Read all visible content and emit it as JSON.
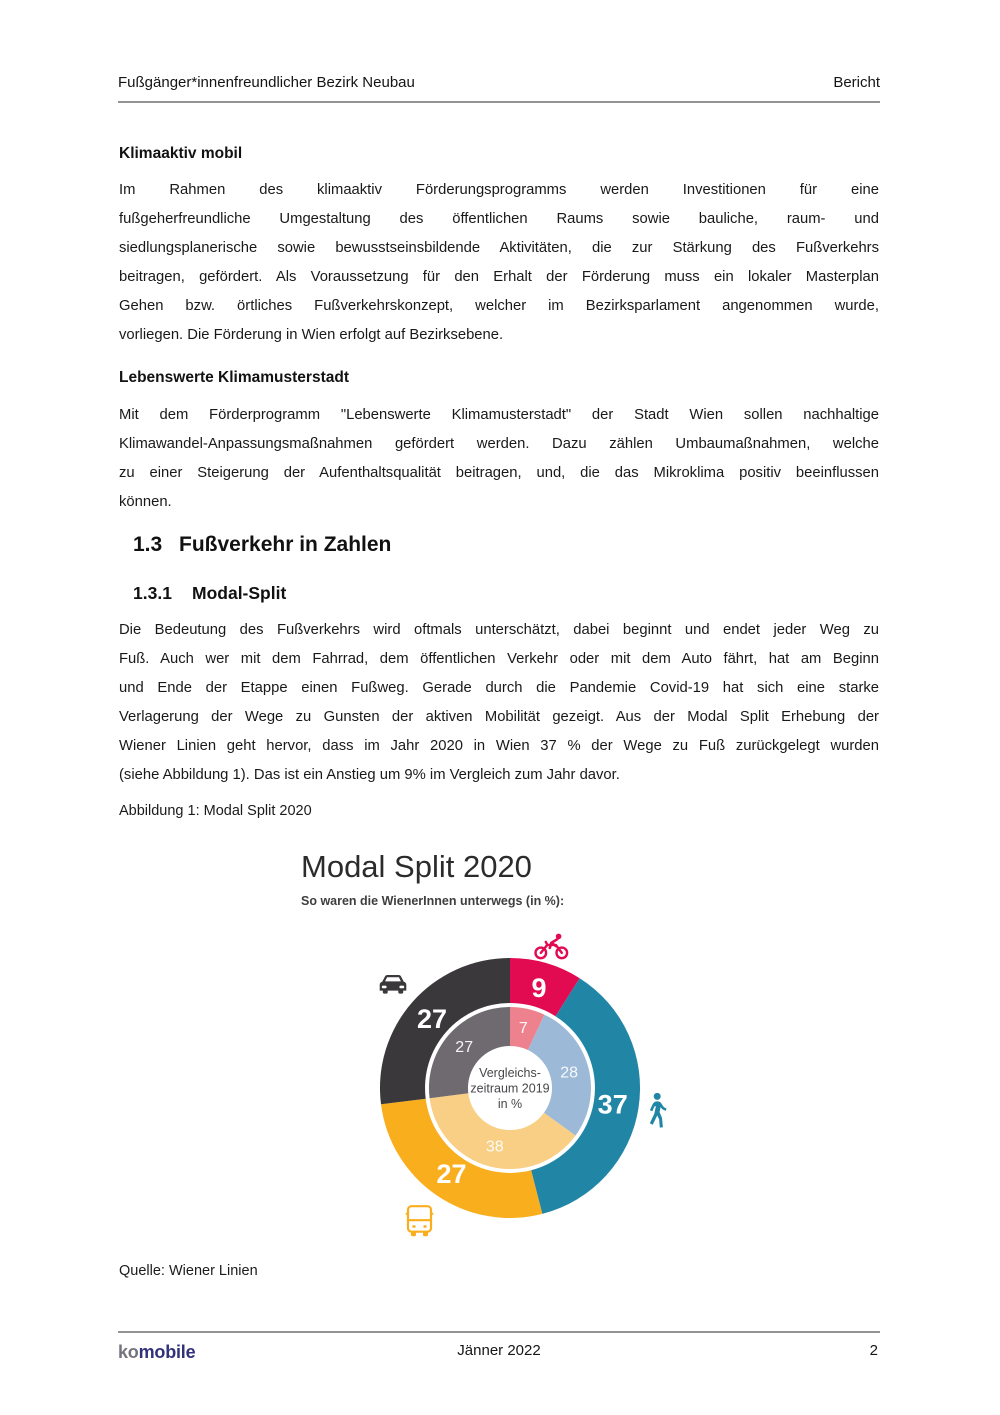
{
  "header": {
    "left": "Fußgänger*innenfreundlicher Bezirk Neubau",
    "right": "Bericht"
  },
  "content": {
    "h_klimaaktiv": "Klimaaktiv mobil",
    "p1_lines": [
      "Im Rahmen des klimaaktiv Förderungsprogramms werden Investitionen für eine",
      "fußgeherfreundliche Umgestaltung des öffentlichen Raums sowie bauliche, raum- und",
      "siedlungsplanerische sowie bewusstseinsbildende Aktivitäten, die zur Stärkung des Fußverkehrs",
      "beitragen, gefördert. Als Voraussetzung für den Erhalt der Förderung muss ein lokaler Masterplan",
      "Gehen bzw. örtliches Fußverkehrskonzept, welcher im Bezirksparlament angenommen wurde,",
      "vorliegen. Die Förderung in Wien erfolgt auf Bezirksebene."
    ],
    "h_lebenswerte": "Lebenswerte Klimamusterstadt",
    "p2_lines": [
      "Mit dem Förderprogramm \"Lebenswerte Klimamusterstadt\" der Stadt Wien sollen nachhaltige",
      "Klimawandel-Anpassungsmaßnahmen gefördert werden. Dazu zählen Umbaumaßnahmen, welche",
      "zu einer Steigerung der Aufenthaltsqualität beitragen, und, die das Mikroklima positiv beeinflussen",
      "können."
    ],
    "h13_number": "1.3",
    "h13_title": "Fußverkehr in Zahlen",
    "h131_number": "1.3.1",
    "h131_title": "Modal-Split",
    "p3_lines": [
      "Die Bedeutung des Fußverkehrs wird oftmals unterschätzt, dabei beginnt und endet jeder Weg zu",
      "Fuß. Auch wer mit dem Fahrrad, dem öffentlichen Verkehr oder mit dem Auto fährt, hat am Beginn",
      "und Ende der Etappe einen Fußweg. Gerade durch die Pandemie Covid-19 hat sich eine starke",
      "Verlagerung der Wege zu Gunsten der aktiven Mobilität gezeigt. Aus der Modal Split Erhebung der",
      "Wiener Linien geht hervor, dass im Jahr 2020 in Wien 37 % der Wege zu Fuß zurückgelegt wurden",
      "(siehe Abbildung 1). Das ist ein Anstieg um 9% im Vergleich zum Jahr davor."
    ],
    "figure_caption": "Abbildung 1: Modal Split 2020",
    "source": "Quelle: Wiener Linien"
  },
  "chart_data": {
    "type": "pie",
    "variant": "double-donut",
    "title": "Modal Split 2020",
    "subtitle": "So waren die WienerInnen unterwegs (in %):",
    "center_label_lines": [
      "Vergleichs-",
      "zeitraum 2019",
      "in %"
    ],
    "start_angle_deg": 0,
    "direction": "clockwise",
    "rings": [
      {
        "name": "2020",
        "position": "outer",
        "r_inner": 85,
        "r_outer": 130,
        "label_radius": 104,
        "segments": [
          {
            "icon": "bicycle",
            "value": 9,
            "color": "#e20a51"
          },
          {
            "icon": "pedestrian",
            "value": 37,
            "color": "#2186a6"
          },
          {
            "icon": "bus",
            "value": 27,
            "color": "#f9ae1e"
          },
          {
            "icon": "car",
            "value": 27,
            "color": "#3a383a"
          }
        ]
      },
      {
        "name": "2019",
        "position": "inner",
        "r_inner": 42,
        "r_outer": 81,
        "label_radius": 61,
        "segments": [
          {
            "value": 7,
            "color": "#ee818e"
          },
          {
            "value": 28,
            "color": "#9cb9d8"
          },
          {
            "value": 38,
            "color": "#f8cf85"
          },
          {
            "value": 27,
            "color": "#6e6a70"
          }
        ]
      }
    ]
  },
  "footer": {
    "logo_ko": "ko",
    "logo_mobile": "mobile",
    "center": "Jänner 2022",
    "page_number": "2"
  }
}
